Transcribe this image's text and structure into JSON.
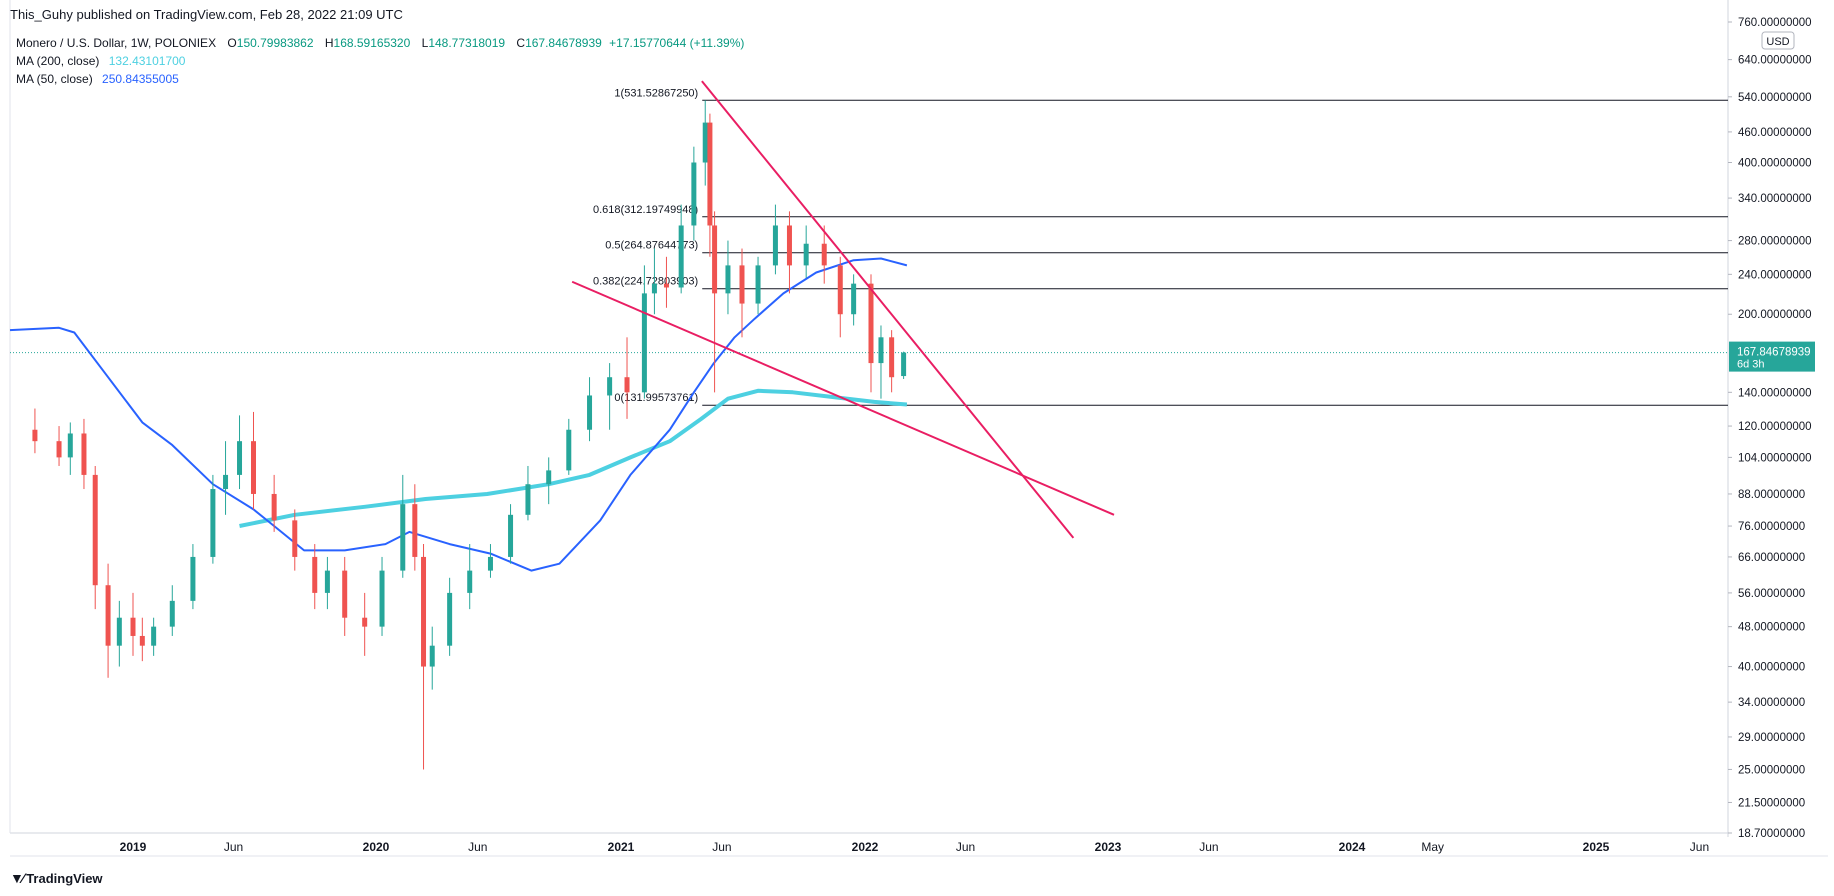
{
  "header": {
    "published": "This_Guhy published on TradingView.com, Feb 28, 2022 21:09 UTC"
  },
  "legend": {
    "symbol": "Monero / U.S. Dollar, 1W, POLONIEX",
    "o_label": "O",
    "o": "150.79983862",
    "h_label": "H",
    "h": "168.59165320",
    "l_label": "L",
    "l": "148.77318019",
    "c_label": "C",
    "c": "167.84678939",
    "change": "+17.15770644 (+11.39%)",
    "ma200_label": "MA (200, close)",
    "ma200": "132.43101700",
    "ma50_label": "MA (50, close)",
    "ma50": "250.84355005"
  },
  "footer": {
    "brand": "TradingView",
    "logo_icon": "tradingview-logo-icon"
  },
  "colors": {
    "up": "#26a69a",
    "down": "#ef5350",
    "ma50": "#2962ff",
    "ma200": "#4dd0e1",
    "trendline": "#e91e63",
    "fib": "#131722",
    "price_badge": "#26a69a",
    "dotted": "#26a69a"
  },
  "chart_data": {
    "type": "candlestick",
    "scale": "log",
    "currency": "USD",
    "ylim": [
      18.7,
      760
    ],
    "y_ticks": [
      "760.00000000",
      "640.00000000",
      "540.00000000",
      "460.00000000",
      "400.00000000",
      "340.00000000",
      "280.00000000",
      "240.00000000",
      "200.00000000",
      "167.84678939",
      "140.00000000",
      "120.00000000",
      "104.00000000",
      "88.00000000",
      "76.00000000",
      "66.00000000",
      "56.00000000",
      "48.00000000",
      "40.00000000",
      "34.00000000",
      "29.00000000",
      "25.00000000",
      "21.50000000",
      "18.70000000"
    ],
    "x_ticks": [
      "2019",
      "Jun",
      "2020",
      "Jun",
      "2021",
      "Jun",
      "2022",
      "Jun",
      "2023",
      "Jun",
      "2024",
      "May",
      "2025",
      "Jun"
    ],
    "last_price": {
      "value": 167.84678939,
      "label": "167.84678939",
      "countdown": "6d 3h"
    },
    "fib_levels": [
      {
        "ratio": "1",
        "value": 531.5286725,
        "label": "1(531.52867250)"
      },
      {
        "ratio": "0.618",
        "value": 312.19749948,
        "label": "0.618(312.19749948)"
      },
      {
        "ratio": "0.5",
        "value": 264.87644773,
        "label": "0.5(264.87644773)"
      },
      {
        "ratio": "0.382",
        "value": 224.72803903,
        "label": "0.382(224.72803903)"
      },
      {
        "ratio": "0",
        "value": 131.99573761,
        "label": "0(131.99573761)"
      }
    ],
    "candles": [
      {
        "date": "2018-09-01",
        "o": 118,
        "h": 130,
        "l": 106,
        "c": 112
      },
      {
        "date": "2018-10-01",
        "o": 112,
        "h": 120,
        "l": 100,
        "c": 104
      },
      {
        "date": "2018-10-15",
        "o": 104,
        "h": 122,
        "l": 96,
        "c": 116
      },
      {
        "date": "2018-11-01",
        "o": 116,
        "h": 124,
        "l": 90,
        "c": 96
      },
      {
        "date": "2018-11-15",
        "o": 96,
        "h": 100,
        "l": 52,
        "c": 58
      },
      {
        "date": "2018-12-01",
        "o": 58,
        "h": 64,
        "l": 38,
        "c": 44
      },
      {
        "date": "2018-12-15",
        "o": 44,
        "h": 54,
        "l": 40,
        "c": 50
      },
      {
        "date": "2019-01-01",
        "o": 50,
        "h": 56,
        "l": 42,
        "c": 46
      },
      {
        "date": "2019-01-15",
        "o": 46,
        "h": 50,
        "l": 41,
        "c": 44
      },
      {
        "date": "2019-02-01",
        "o": 44,
        "h": 50,
        "l": 42,
        "c": 48
      },
      {
        "date": "2019-03-01",
        "o": 48,
        "h": 58,
        "l": 46,
        "c": 54
      },
      {
        "date": "2019-04-01",
        "o": 54,
        "h": 70,
        "l": 52,
        "c": 66
      },
      {
        "date": "2019-05-01",
        "o": 66,
        "h": 96,
        "l": 64,
        "c": 90
      },
      {
        "date": "2019-05-20",
        "o": 90,
        "h": 112,
        "l": 80,
        "c": 96
      },
      {
        "date": "2019-06-10",
        "o": 96,
        "h": 126,
        "l": 90,
        "c": 112
      },
      {
        "date": "2019-07-01",
        "o": 112,
        "h": 128,
        "l": 82,
        "c": 88
      },
      {
        "date": "2019-08-01",
        "o": 88,
        "h": 96,
        "l": 74,
        "c": 78
      },
      {
        "date": "2019-09-01",
        "o": 78,
        "h": 82,
        "l": 62,
        "c": 66
      },
      {
        "date": "2019-10-01",
        "o": 66,
        "h": 70,
        "l": 52,
        "c": 56
      },
      {
        "date": "2019-10-20",
        "o": 56,
        "h": 66,
        "l": 52,
        "c": 62
      },
      {
        "date": "2019-11-15",
        "o": 62,
        "h": 66,
        "l": 46,
        "c": 50
      },
      {
        "date": "2019-12-15",
        "o": 50,
        "h": 56,
        "l": 42,
        "c": 48
      },
      {
        "date": "2020-01-10",
        "o": 48,
        "h": 66,
        "l": 46,
        "c": 62
      },
      {
        "date": "2020-02-10",
        "o": 62,
        "h": 96,
        "l": 60,
        "c": 84
      },
      {
        "date": "2020-02-28",
        "o": 84,
        "h": 92,
        "l": 62,
        "c": 66
      },
      {
        "date": "2020-03-12",
        "o": 66,
        "h": 70,
        "l": 25,
        "c": 40
      },
      {
        "date": "2020-03-25",
        "o": 40,
        "h": 48,
        "l": 36,
        "c": 44
      },
      {
        "date": "2020-04-20",
        "o": 44,
        "h": 60,
        "l": 42,
        "c": 56
      },
      {
        "date": "2020-05-20",
        "o": 56,
        "h": 70,
        "l": 52,
        "c": 62
      },
      {
        "date": "2020-06-20",
        "o": 62,
        "h": 70,
        "l": 60,
        "c": 66
      },
      {
        "date": "2020-07-20",
        "o": 66,
        "h": 84,
        "l": 64,
        "c": 80
      },
      {
        "date": "2020-08-15",
        "o": 80,
        "h": 100,
        "l": 78,
        "c": 92
      },
      {
        "date": "2020-09-15",
        "o": 92,
        "h": 104,
        "l": 84,
        "c": 98
      },
      {
        "date": "2020-10-15",
        "o": 98,
        "h": 124,
        "l": 96,
        "c": 118
      },
      {
        "date": "2020-11-15",
        "o": 118,
        "h": 150,
        "l": 112,
        "c": 138
      },
      {
        "date": "2020-12-15",
        "o": 138,
        "h": 160,
        "l": 118,
        "c": 150
      },
      {
        "date": "2021-01-10",
        "o": 150,
        "h": 180,
        "l": 124,
        "c": 140
      },
      {
        "date": "2021-02-05",
        "o": 140,
        "h": 250,
        "l": 136,
        "c": 220
      },
      {
        "date": "2021-02-20",
        "o": 220,
        "h": 270,
        "l": 200,
        "c": 230
      },
      {
        "date": "2021-03-10",
        "o": 230,
        "h": 260,
        "l": 206,
        "c": 226
      },
      {
        "date": "2021-04-01",
        "o": 226,
        "h": 330,
        "l": 220,
        "c": 300
      },
      {
        "date": "2021-04-20",
        "o": 300,
        "h": 430,
        "l": 280,
        "c": 400
      },
      {
        "date": "2021-05-07",
        "o": 400,
        "h": 531.5,
        "l": 360,
        "c": 480
      },
      {
        "date": "2021-05-14",
        "o": 480,
        "h": 500,
        "l": 260,
        "c": 300
      },
      {
        "date": "2021-05-21",
        "o": 300,
        "h": 320,
        "l": 140,
        "c": 220
      },
      {
        "date": "2021-06-10",
        "o": 220,
        "h": 280,
        "l": 200,
        "c": 250
      },
      {
        "date": "2021-07-01",
        "o": 250,
        "h": 270,
        "l": 180,
        "c": 210
      },
      {
        "date": "2021-07-25",
        "o": 210,
        "h": 260,
        "l": 200,
        "c": 250
      },
      {
        "date": "2021-08-20",
        "o": 250,
        "h": 330,
        "l": 240,
        "c": 300
      },
      {
        "date": "2021-09-10",
        "o": 300,
        "h": 320,
        "l": 220,
        "c": 250
      },
      {
        "date": "2021-10-05",
        "o": 250,
        "h": 300,
        "l": 236,
        "c": 276
      },
      {
        "date": "2021-11-01",
        "o": 276,
        "h": 300,
        "l": 230,
        "c": 250
      },
      {
        "date": "2021-11-25",
        "o": 250,
        "h": 260,
        "l": 180,
        "c": 200
      },
      {
        "date": "2021-12-15",
        "o": 200,
        "h": 240,
        "l": 190,
        "c": 230
      },
      {
        "date": "2022-01-10",
        "o": 230,
        "h": 240,
        "l": 140,
        "c": 160
      },
      {
        "date": "2022-01-25",
        "o": 160,
        "h": 190,
        "l": 136,
        "c": 180
      },
      {
        "date": "2022-02-10",
        "o": 180,
        "h": 186,
        "l": 140,
        "c": 150
      },
      {
        "date": "2022-02-28",
        "o": 150.8,
        "h": 168.6,
        "l": 148.8,
        "c": 167.85
      }
    ],
    "ma50_series": [
      {
        "date": "2018-08-01",
        "v": 186
      },
      {
        "date": "2018-10-01",
        "v": 188
      },
      {
        "date": "2018-10-20",
        "v": 184
      },
      {
        "date": "2018-12-01",
        "v": 150
      },
      {
        "date": "2019-01-15",
        "v": 122
      },
      {
        "date": "2019-03-01",
        "v": 110
      },
      {
        "date": "2019-05-01",
        "v": 92
      },
      {
        "date": "2019-07-01",
        "v": 82
      },
      {
        "date": "2019-08-01",
        "v": 76
      },
      {
        "date": "2019-09-15",
        "v": 68
      },
      {
        "date": "2019-11-15",
        "v": 68
      },
      {
        "date": "2020-01-15",
        "v": 70
      },
      {
        "date": "2020-02-20",
        "v": 74
      },
      {
        "date": "2020-04-20",
        "v": 70
      },
      {
        "date": "2020-06-20",
        "v": 67
      },
      {
        "date": "2020-08-20",
        "v": 62
      },
      {
        "date": "2020-10-01",
        "v": 64
      },
      {
        "date": "2020-12-01",
        "v": 78
      },
      {
        "date": "2021-01-15",
        "v": 96
      },
      {
        "date": "2021-03-15",
        "v": 118
      },
      {
        "date": "2021-04-20",
        "v": 140
      },
      {
        "date": "2021-05-20",
        "v": 160
      },
      {
        "date": "2021-06-20",
        "v": 180
      },
      {
        "date": "2021-07-20",
        "v": 196
      },
      {
        "date": "2021-09-01",
        "v": 220
      },
      {
        "date": "2021-10-20",
        "v": 242
      },
      {
        "date": "2021-12-15",
        "v": 256
      },
      {
        "date": "2022-01-25",
        "v": 258
      },
      {
        "date": "2022-03-05",
        "v": 250
      }
    ],
    "ma200_series": [
      {
        "date": "2019-06-10",
        "v": 76
      },
      {
        "date": "2019-09-01",
        "v": 80
      },
      {
        "date": "2019-12-15",
        "v": 83
      },
      {
        "date": "2020-03-15",
        "v": 86
      },
      {
        "date": "2020-06-15",
        "v": 88
      },
      {
        "date": "2020-09-15",
        "v": 92
      },
      {
        "date": "2020-11-15",
        "v": 96
      },
      {
        "date": "2021-01-15",
        "v": 104
      },
      {
        "date": "2021-03-15",
        "v": 112
      },
      {
        "date": "2021-05-01",
        "v": 124
      },
      {
        "date": "2021-06-10",
        "v": 136
      },
      {
        "date": "2021-07-25",
        "v": 141
      },
      {
        "date": "2021-09-15",
        "v": 140
      },
      {
        "date": "2021-11-15",
        "v": 137
      },
      {
        "date": "2022-01-15",
        "v": 134
      },
      {
        "date": "2022-03-05",
        "v": 132.4
      }
    ],
    "trendlines": [
      {
        "name": "falling-upper",
        "from": {
          "date": "2021-05-02",
          "v": 580
        },
        "to": {
          "date": "2022-11-10",
          "v": 72
        }
      },
      {
        "name": "falling-lower",
        "from": {
          "date": "2020-10-20",
          "v": 232
        },
        "to": {
          "date": "2023-01-10",
          "v": 80
        }
      }
    ]
  }
}
